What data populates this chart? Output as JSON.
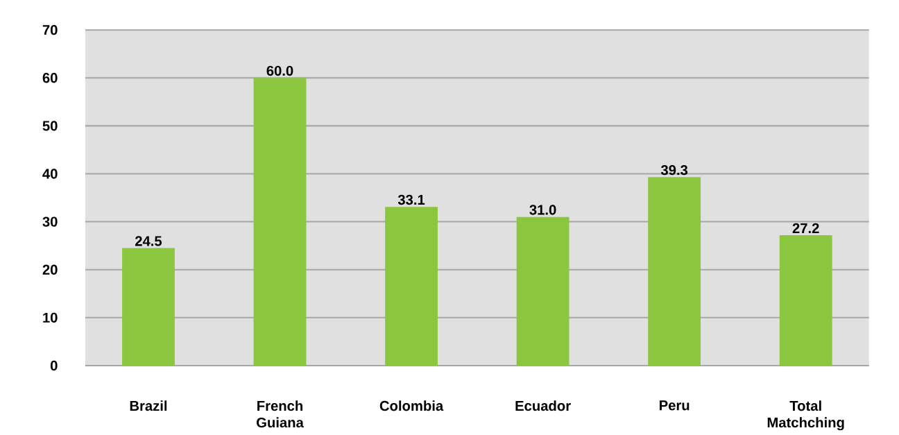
{
  "chart_data": {
    "type": "bar",
    "categories": [
      "Brazil",
      "French Guiana",
      "Colombia",
      "Ecuador",
      "Peru",
      "Total Matchching"
    ],
    "values": [
      24.5,
      60.0,
      33.1,
      31.0,
      39.3,
      27.2
    ],
    "value_labels": [
      "24.5",
      "60.0",
      "33.1",
      "31.0",
      "39.3",
      "27.2"
    ],
    "color": "#8cc63f",
    "ylim": [
      0,
      70
    ],
    "yticks": [
      0,
      10,
      20,
      30,
      40,
      50,
      60,
      70
    ],
    "grid": "y"
  }
}
